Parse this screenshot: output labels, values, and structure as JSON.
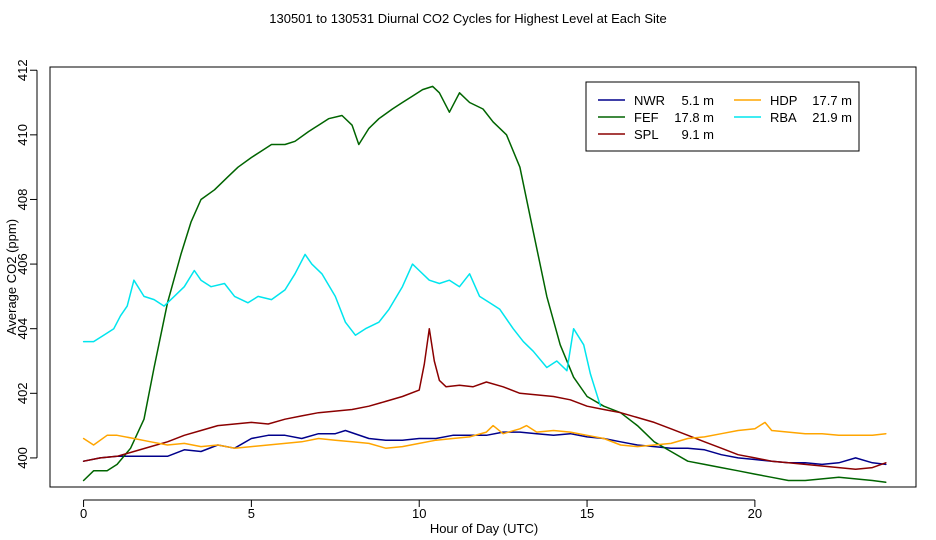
{
  "chart_data": {
    "type": "line",
    "title": "130501  to  130531 Diurnal CO2 Cycles for Highest Level at Each Site",
    "xlabel": "Hour of Day (UTC)",
    "ylabel": "Average CO2 (ppm)",
    "xlim": [
      -1.0,
      24.8
    ],
    "ylim": [
      399.1,
      412.1
    ],
    "x_ticks": [
      0,
      5,
      10,
      15,
      20
    ],
    "y_ticks": [
      400,
      402,
      404,
      406,
      408,
      410,
      412
    ],
    "legend_position": "top-right",
    "series": [
      {
        "name": "NWR",
        "height": "5.1 m",
        "color": "#00008b",
        "x": [
          0,
          0.5,
          1,
          1.5,
          2,
          2.5,
          3,
          3.5,
          4,
          4.5,
          5,
          5.5,
          6,
          6.5,
          7,
          7.5,
          7.8,
          8.5,
          9,
          9.5,
          10,
          10.5,
          11,
          11.5,
          12,
          12.5,
          13,
          13.5,
          14,
          14.5,
          15,
          15.5,
          16,
          16.5,
          17,
          17.5,
          18,
          18.5,
          19,
          19.5,
          20,
          20.5,
          21,
          21.5,
          22,
          22.5,
          23,
          23.5,
          23.9
        ],
        "y": [
          399.9,
          400.0,
          400.05,
          400.05,
          400.05,
          400.05,
          400.25,
          400.2,
          400.4,
          400.3,
          400.6,
          400.7,
          400.7,
          400.6,
          400.75,
          400.75,
          400.85,
          400.6,
          400.55,
          400.55,
          400.6,
          400.6,
          400.7,
          400.7,
          400.7,
          400.8,
          400.8,
          400.75,
          400.7,
          400.75,
          400.65,
          400.6,
          400.5,
          400.4,
          400.35,
          400.3,
          400.3,
          400.25,
          400.1,
          400.0,
          399.95,
          399.9,
          399.85,
          399.85,
          399.8,
          399.85,
          400.0,
          399.85,
          399.8
        ]
      },
      {
        "name": "FEF",
        "height": "17.8 m",
        "color": "#006400",
        "x": [
          0,
          0.3,
          0.7,
          1.0,
          1.4,
          1.8,
          2.1,
          2.5,
          2.9,
          3.2,
          3.5,
          3.9,
          4.3,
          4.6,
          5.0,
          5.3,
          5.6,
          6.0,
          6.3,
          6.7,
          7.0,
          7.3,
          7.7,
          8.0,
          8.2,
          8.5,
          8.8,
          9.2,
          9.5,
          9.8,
          10.1,
          10.4,
          10.6,
          10.9,
          11.2,
          11.5,
          11.9,
          12.2,
          12.6,
          13.0,
          13.4,
          13.8,
          14.2,
          14.6,
          15.0,
          15.5,
          16.0,
          16.5,
          17.0,
          17.5,
          18.0,
          18.5,
          19.0,
          19.5,
          20.0,
          20.5,
          21.0,
          21.5,
          22.0,
          22.5,
          23.0,
          23.5,
          23.9
        ],
        "y": [
          399.3,
          399.6,
          399.6,
          399.8,
          400.3,
          401.2,
          402.8,
          404.8,
          406.3,
          407.3,
          408.0,
          408.3,
          408.7,
          409.0,
          409.3,
          409.5,
          409.7,
          409.7,
          409.8,
          410.1,
          410.3,
          410.5,
          410.6,
          410.3,
          409.7,
          410.2,
          410.5,
          410.8,
          411.0,
          411.2,
          411.4,
          411.5,
          411.3,
          410.7,
          411.3,
          411.0,
          410.8,
          410.4,
          410.0,
          409.0,
          407.0,
          405.0,
          403.5,
          402.5,
          401.9,
          401.6,
          401.4,
          401.0,
          400.5,
          400.2,
          399.9,
          399.8,
          399.7,
          399.6,
          399.5,
          399.4,
          399.3,
          399.3,
          399.35,
          399.4,
          399.35,
          399.3,
          399.25
        ]
      },
      {
        "name": "SPL",
        "height": "9.1 m",
        "color": "#8b0000",
        "x": [
          0,
          0.5,
          1,
          1.5,
          2,
          2.5,
          3,
          3.5,
          4,
          4.5,
          5,
          5.5,
          6,
          6.5,
          7,
          7.5,
          8,
          8.5,
          9,
          9.5,
          10,
          10.15,
          10.3,
          10.45,
          10.6,
          10.8,
          11.2,
          11.6,
          12,
          12.5,
          13,
          13.5,
          14,
          14.5,
          15,
          15.5,
          16,
          16.5,
          17,
          17.5,
          18,
          18.5,
          19,
          19.5,
          20,
          20.5,
          21,
          21.5,
          22,
          22.5,
          23,
          23.5,
          23.9
        ],
        "y": [
          399.9,
          400.0,
          400.05,
          400.2,
          400.35,
          400.5,
          400.7,
          400.85,
          401.0,
          401.05,
          401.1,
          401.05,
          401.2,
          401.3,
          401.4,
          401.45,
          401.5,
          401.6,
          401.75,
          401.9,
          402.1,
          402.9,
          404.0,
          403.0,
          402.4,
          402.2,
          402.25,
          402.2,
          402.35,
          402.2,
          402.0,
          401.95,
          401.9,
          401.8,
          401.6,
          401.5,
          401.4,
          401.25,
          401.1,
          400.9,
          400.7,
          400.5,
          400.3,
          400.1,
          400.0,
          399.9,
          399.85,
          399.8,
          399.75,
          399.7,
          399.65,
          399.7,
          399.85
        ]
      },
      {
        "name": "HDP",
        "height": "17.7 m",
        "color": "#ffa500",
        "x": [
          0,
          0.3,
          0.7,
          1.0,
          1.5,
          2.0,
          2.5,
          3.0,
          3.5,
          4.0,
          4.5,
          5.0,
          5.5,
          6.0,
          6.5,
          7.0,
          7.5,
          8.0,
          8.5,
          9.0,
          9.5,
          10.0,
          10.5,
          11.0,
          11.5,
          12.0,
          12.2,
          12.5,
          13.0,
          13.2,
          13.5,
          14.0,
          14.5,
          15.0,
          15.5,
          16.0,
          16.5,
          17.0,
          17.5,
          18.0,
          18.5,
          19.0,
          19.5,
          20.0,
          20.3,
          20.5,
          21.0,
          21.5,
          22.0,
          22.5,
          23.0,
          23.5,
          23.9
        ],
        "y": [
          400.6,
          400.4,
          400.7,
          400.7,
          400.6,
          400.5,
          400.4,
          400.45,
          400.35,
          400.4,
          400.3,
          400.35,
          400.4,
          400.45,
          400.5,
          400.6,
          400.55,
          400.5,
          400.45,
          400.3,
          400.35,
          400.45,
          400.55,
          400.6,
          400.65,
          400.8,
          401.0,
          400.75,
          400.9,
          401.0,
          400.8,
          400.85,
          400.8,
          400.7,
          400.6,
          400.4,
          400.35,
          400.4,
          400.45,
          400.6,
          400.65,
          400.75,
          400.85,
          400.9,
          401.1,
          400.85,
          400.8,
          400.75,
          400.75,
          400.7,
          400.7,
          400.7,
          400.75
        ]
      },
      {
        "name": "RBA",
        "height": "21.9 m",
        "color": "#00e5ee",
        "x": [
          0,
          0.3,
          0.6,
          0.9,
          1.1,
          1.3,
          1.5,
          1.8,
          2.1,
          2.4,
          2.7,
          3.0,
          3.3,
          3.5,
          3.8,
          4.2,
          4.5,
          4.9,
          5.2,
          5.6,
          6.0,
          6.3,
          6.6,
          6.8,
          7.1,
          7.5,
          7.8,
          8.1,
          8.4,
          8.8,
          9.1,
          9.5,
          9.8,
          10.0,
          10.3,
          10.6,
          10.9,
          11.2,
          11.5,
          11.8,
          12.1,
          12.4,
          12.8,
          13.1,
          13.4,
          13.8,
          14.1,
          14.4,
          14.6,
          14.9,
          15.1,
          15.4
        ],
        "y": [
          403.6,
          403.6,
          403.8,
          404.0,
          404.4,
          404.7,
          405.5,
          405.0,
          404.9,
          404.7,
          405.0,
          405.3,
          405.8,
          405.5,
          405.3,
          405.4,
          405.0,
          404.8,
          405.0,
          404.9,
          405.2,
          405.7,
          406.3,
          406.0,
          405.7,
          405.0,
          404.2,
          403.8,
          404.0,
          404.2,
          404.6,
          405.3,
          406.0,
          405.8,
          405.5,
          405.4,
          405.5,
          405.3,
          405.7,
          405.0,
          404.8,
          404.6,
          404.0,
          403.6,
          403.3,
          402.8,
          403.0,
          402.7,
          404.0,
          403.5,
          402.6,
          401.6
        ]
      }
    ]
  }
}
